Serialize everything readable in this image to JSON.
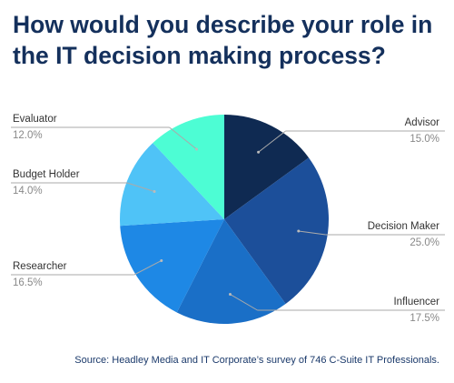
{
  "chart_data": {
    "type": "pie",
    "title": "How would you describe your role in the IT decision making process?",
    "categories": [
      "Advisor",
      "Decision Maker",
      "Influencer",
      "Researcher",
      "Budget Holder",
      "Evaluator"
    ],
    "values": [
      15.0,
      25.0,
      17.5,
      16.5,
      14.0,
      12.0
    ],
    "value_labels": [
      "15.0%",
      "25.0%",
      "17.5%",
      "16.5%",
      "14.0%",
      "12.0%"
    ],
    "colors": [
      "#0f2a52",
      "#1c4f9a",
      "#1a6fc7",
      "#1e88e5",
      "#4fc3f7",
      "#4dfdd4"
    ],
    "source": "Source: Headley Media and IT Corporate’s survey of 746 C-Suite IT Professionals."
  }
}
